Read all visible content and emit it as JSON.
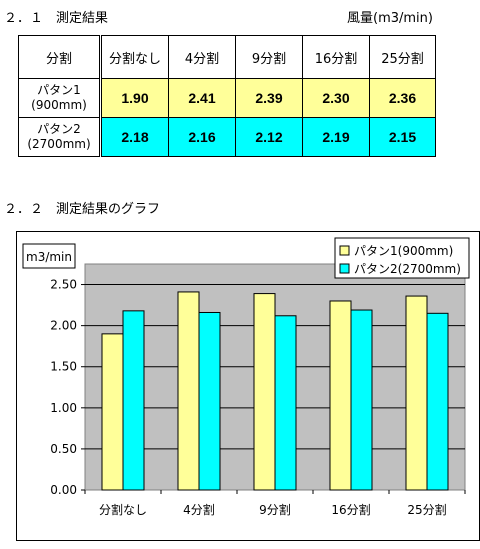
{
  "section1": {
    "title": "２．１　測定結果",
    "unit": "風量(m3/min)"
  },
  "table": {
    "corner": "分割",
    "columns": [
      "分割なし",
      "4分割",
      "9分割",
      "16分割",
      "25分割"
    ],
    "rows": [
      {
        "label1": "パタン1",
        "label2": "(900mm)",
        "values": [
          "1.90",
          "2.41",
          "2.39",
          "2.30",
          "2.36"
        ]
      },
      {
        "label1": "パタン2",
        "label2": "(2700mm)",
        "values": [
          "2.18",
          "2.16",
          "2.12",
          "2.19",
          "2.15"
        ]
      }
    ]
  },
  "section2": {
    "title": "２．２　測定結果のグラフ"
  },
  "chart_data": {
    "type": "bar",
    "ylabel": "m3/min",
    "categories": [
      "分割なし",
      "4分割",
      "9分割",
      "16分割",
      "25分割"
    ],
    "series": [
      {
        "name": "パタン1(900mm)",
        "color": "#ffff99",
        "values": [
          1.9,
          2.41,
          2.39,
          2.3,
          2.36
        ]
      },
      {
        "name": "パタン2(2700mm)",
        "color": "#00ffff",
        "values": [
          2.18,
          2.16,
          2.12,
          2.19,
          2.15
        ]
      }
    ],
    "ylim": [
      0,
      2.75
    ],
    "yticks": [
      "0.00",
      "0.50",
      "1.00",
      "1.50",
      "2.00",
      "2.50"
    ],
    "ytick_values": [
      0,
      0.5,
      1.0,
      1.5,
      2.0,
      2.5
    ],
    "grid": true,
    "legend": "top-right",
    "plot_background": "#c0c0c0"
  }
}
